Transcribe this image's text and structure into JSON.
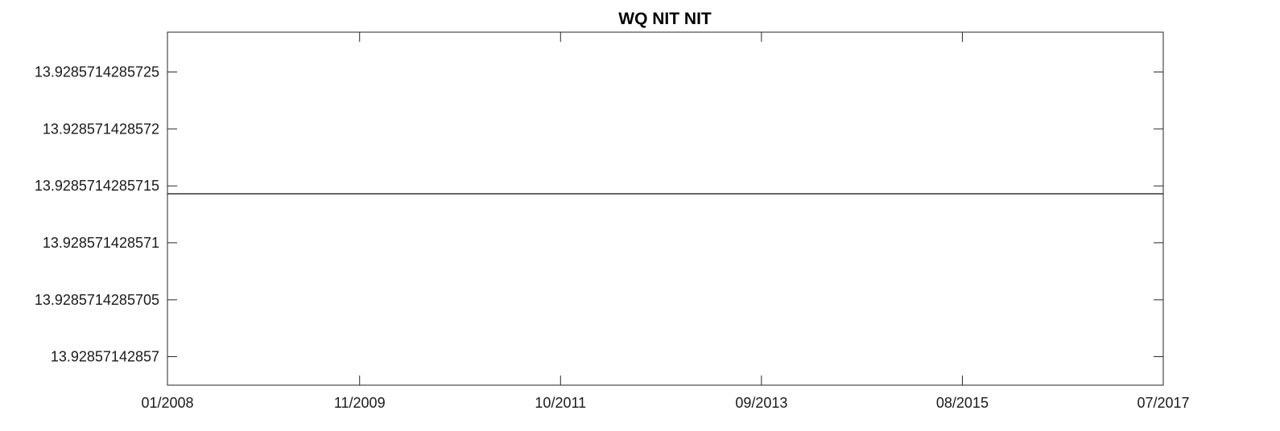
{
  "chart_data": {
    "type": "line",
    "title": "WQ NIT NIT",
    "xlabel": "",
    "ylabel": "",
    "xlim": [
      "01/2008",
      "07/2017"
    ],
    "ylim": [
      13.92857142856975,
      13.92857142857285
    ],
    "x_ticks": [
      "01/2008",
      "11/2009",
      "10/2011",
      "09/2013",
      "08/2015",
      "07/2017"
    ],
    "y_ticks": [
      {
        "value": 13.92857142857,
        "label": "13.92857142857"
      },
      {
        "value": 13.9285714285705,
        "label": "13.9285714285705"
      },
      {
        "value": 13.928571428571,
        "label": "13.928571428571"
      },
      {
        "value": 13.9285714285715,
        "label": "13.9285714285715"
      },
      {
        "value": 13.928571428572,
        "label": "13.928571428572"
      },
      {
        "value": 13.9285714285725,
        "label": "13.9285714285725"
      }
    ],
    "series": [
      {
        "x": [
          "01/2008",
          "07/2017"
        ],
        "values": [
          13.92857142857143,
          13.92857142857143
        ]
      }
    ],
    "grid": false,
    "line_color": "#333333",
    "axis_color": "#262626"
  }
}
